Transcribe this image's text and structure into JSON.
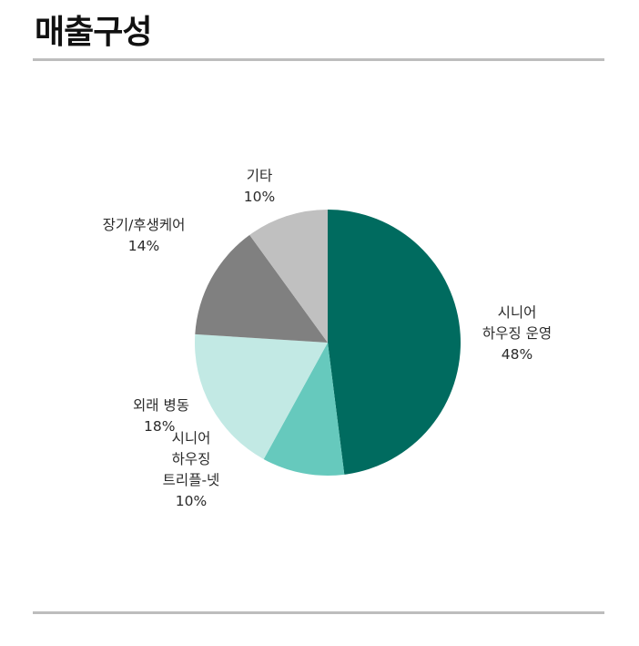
{
  "header": {
    "title": "매출구성"
  },
  "chart_data": {
    "type": "pie",
    "title": "매출구성",
    "start_angle": "12 o'clock, clockwise",
    "categories": [
      "시니어 하우징 운영",
      "시니어 하우징 트리플-넷",
      "외래 병동",
      "장기/후생케어",
      "기타"
    ],
    "values": [
      48,
      10,
      18,
      14,
      10
    ],
    "unit": "%",
    "colors": [
      "#006B5F",
      "#66C9BD",
      "#C2E9E4",
      "#808080",
      "#C0C0C0"
    ],
    "legend": "none (data labels beside slices)"
  },
  "labels": {
    "s0": {
      "line1": "시니어",
      "line2": "하우징 운영",
      "pct": "48%"
    },
    "s1": {
      "line1": "시니어",
      "line2": "하우징",
      "line3": "트리플-넷",
      "pct": "10%"
    },
    "s2": {
      "line1": "외래 병동",
      "pct": "18%"
    },
    "s3": {
      "line1": "장기/후생케어",
      "pct": "14%"
    },
    "s4": {
      "line1": "기타",
      "pct": "10%"
    }
  }
}
